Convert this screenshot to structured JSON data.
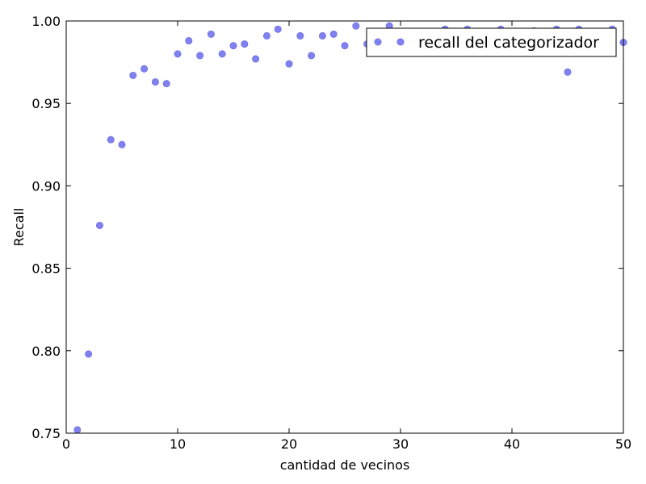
{
  "chart_data": {
    "type": "scatter",
    "title": "",
    "xlabel": "cantidad de vecinos",
    "ylabel": "Recall",
    "xlim": [
      0,
      50
    ],
    "ylim": [
      0.75,
      1.0
    ],
    "xticks": [
      0,
      10,
      20,
      30,
      40,
      50
    ],
    "yticks": [
      0.75,
      0.8,
      0.85,
      0.9,
      0.95,
      1.0
    ],
    "xtick_labels": [
      "0",
      "10",
      "20",
      "30",
      "40",
      "50"
    ],
    "ytick_labels": [
      "0.75",
      "0.80",
      "0.85",
      "0.90",
      "0.95",
      "1.00"
    ],
    "grid": false,
    "legend": {
      "position": "top-right"
    },
    "series": [
      {
        "name": "recall del categorizador",
        "color": "#8080f0",
        "x": [
          1,
          2,
          3,
          4,
          5,
          6,
          7,
          8,
          9,
          10,
          11,
          12,
          13,
          14,
          15,
          16,
          17,
          18,
          19,
          20,
          21,
          22,
          23,
          24,
          25,
          26,
          27,
          28,
          29,
          30,
          31,
          32,
          33,
          34,
          35,
          36,
          37,
          38,
          39,
          40,
          41,
          42,
          43,
          44,
          45,
          46,
          47,
          48,
          49,
          50
        ],
        "y": [
          0.752,
          0.798,
          0.876,
          0.928,
          0.925,
          0.967,
          0.971,
          0.963,
          0.962,
          0.98,
          0.988,
          0.979,
          0.992,
          0.98,
          0.985,
          0.986,
          0.977,
          0.991,
          0.995,
          0.974,
          0.991,
          0.979,
          0.991,
          0.992,
          0.985,
          0.997,
          0.986,
          0.988,
          0.997,
          0.99,
          0.991,
          0.99,
          0.991,
          0.995,
          0.991,
          0.995,
          0.991,
          0.991,
          0.995,
          0.991,
          0.992,
          0.994,
          0.991,
          0.995,
          0.969,
          0.995,
          0.991,
          0.991,
          0.995,
          0.987
        ]
      }
    ]
  }
}
